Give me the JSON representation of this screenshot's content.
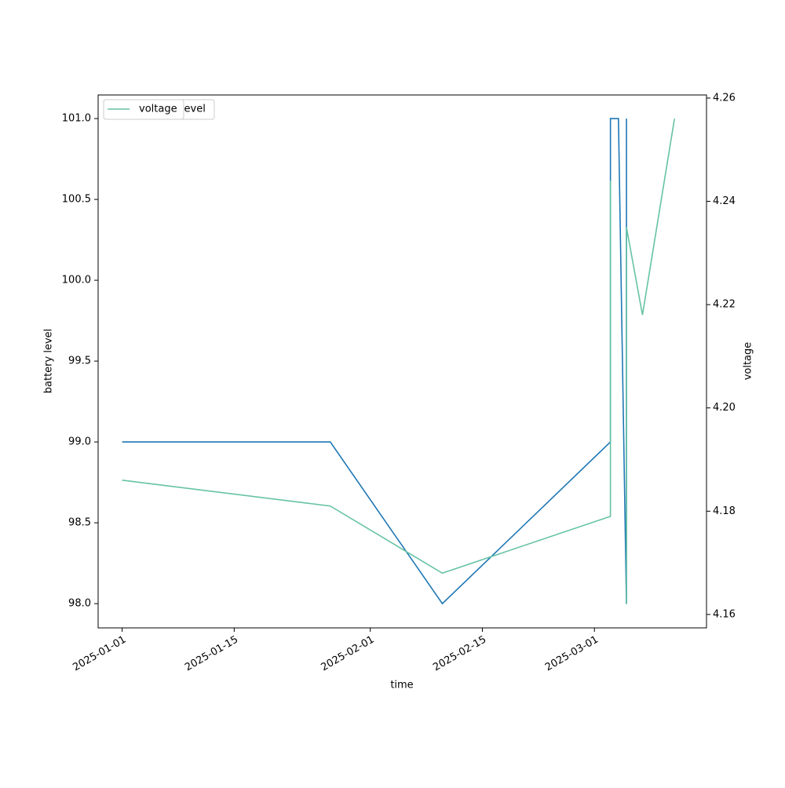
{
  "chart_data": {
    "type": "line",
    "x_label": "time",
    "y_label": "battery level",
    "y2_label": "voltage",
    "x": [
      "2025-01-01",
      "2025-01-27",
      "2025-02-10",
      "2025-03-03",
      "2025-03-03",
      "2025-03-04",
      "2025-03-05",
      "2025-03-05",
      "2025-03-07",
      "2025-03-11"
    ],
    "series": [
      {
        "name": "battery_level",
        "color": "#1f77b4",
        "values": [
          99,
          99,
          98,
          99,
          101,
          101,
          98,
          101,
          null,
          101
        ]
      },
      {
        "name": "voltage",
        "color": "#66c2a5",
        "axis": "y2",
        "values": [
          4.186,
          4.181,
          4.168,
          4.179,
          4.244,
          null,
          4.162,
          4.235,
          4.218,
          4.256
        ]
      }
    ],
    "xlim": [
      "2024-12-29",
      "2025-03-15"
    ],
    "xticks": [
      "2025-01-01",
      "2025-01-15",
      "2025-02-01",
      "2025-02-15",
      "2025-03-01"
    ],
    "ylim": [
      97.85,
      101.146
    ],
    "yticks": [
      {
        "value": 98,
        "label": "98.0"
      },
      {
        "value": 98.5,
        "label": "98.5"
      },
      {
        "value": 99,
        "label": "99.0"
      },
      {
        "value": 99.5,
        "label": "99.5"
      },
      {
        "value": 100,
        "label": "100.0"
      },
      {
        "value": 100.5,
        "label": "100.5"
      },
      {
        "value": 101,
        "label": "101.0"
      }
    ],
    "y2lim": [
      4.1574,
      4.2606
    ],
    "y2ticks": [
      4.16,
      4.18,
      {
        "value": 4.2,
        "label": "4.20"
      },
      4.22,
      4.24,
      4.26
    ],
    "legend": "upper left"
  }
}
